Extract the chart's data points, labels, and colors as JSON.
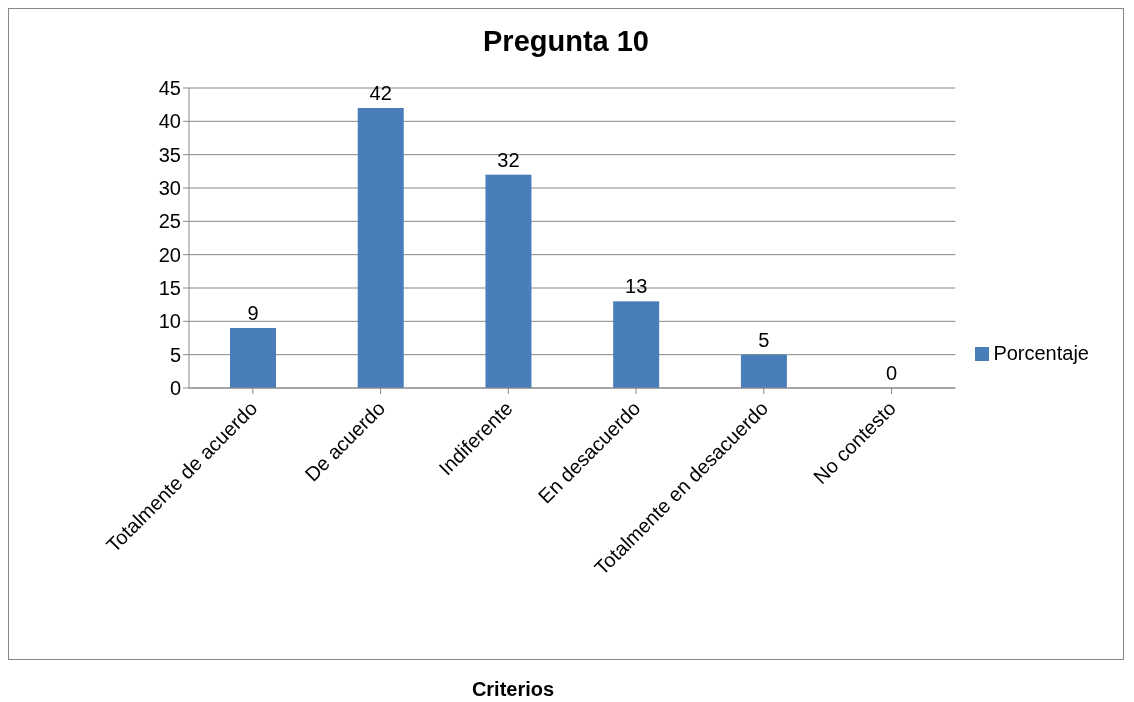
{
  "chart_data": {
    "type": "bar",
    "title": "Pregunta 10",
    "xlabel": "Criterios",
    "categories": [
      "Totalmente de acuerdo",
      "De acuerdo",
      "Indiferente",
      "En desacuerdo",
      "Totalmente en desacuerdo",
      "No contesto"
    ],
    "series": [
      {
        "name": "Porcentaje",
        "color": "#4a7ebb",
        "values": [
          9,
          42,
          32,
          13,
          5,
          0
        ]
      }
    ],
    "ylim": [
      0,
      45
    ],
    "yticks": [
      0,
      5,
      10,
      15,
      20,
      25,
      30,
      35,
      40,
      45
    ],
    "grid": "y",
    "legend": "right",
    "data_labels": true
  }
}
